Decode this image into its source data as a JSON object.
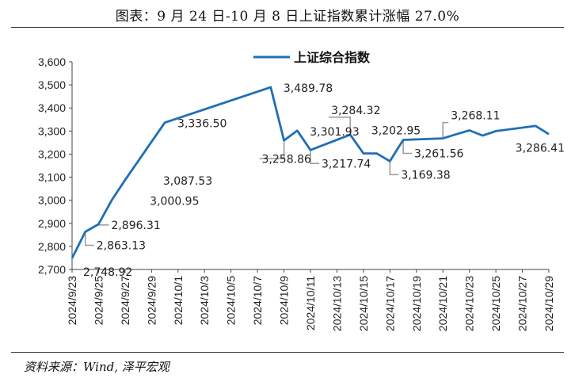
{
  "title": "图表：9 月 24 日-10 月 8 日上证指数累计涨幅 27.0%",
  "source": "资料来源：Wind, 泽平宏观",
  "colors": {
    "series": "#1f6fb5",
    "axis": "#444444",
    "leader": "#999999",
    "text": "#222222"
  },
  "chart_data": {
    "type": "line",
    "title": "图表：9 月 24 日-10 月 8 日上证指数累计涨幅 27.0%",
    "xlabel": "",
    "ylabel": "",
    "ylim": [
      2700,
      3600
    ],
    "yticks": [
      "2,700",
      "2,800",
      "2,900",
      "3,000",
      "3,100",
      "3,200",
      "3,300",
      "3,400",
      "3,500",
      "3,600"
    ],
    "xrange": [
      "2024/9/23",
      "2024/10/29"
    ],
    "xticks": [
      "2024/9/23",
      "2024/9/25",
      "2024/9/27",
      "2024/9/29",
      "2024/10/1",
      "2024/10/3",
      "2024/10/5",
      "2024/10/7",
      "2024/10/9",
      "2024/10/11",
      "2024/10/13",
      "2024/10/15",
      "2024/10/17",
      "2024/10/19",
      "2024/10/21",
      "2024/10/23",
      "2024/10/25",
      "2024/10/27",
      "2024/10/29"
    ],
    "grid": false,
    "legend": "top-center",
    "series": [
      {
        "name": "上证综合指数",
        "points": [
          {
            "x": "2024/9/23",
            "y": 2748.92
          },
          {
            "x": "2024/9/24",
            "y": 2863.13
          },
          {
            "x": "2024/9/25",
            "y": 2896.31
          },
          {
            "x": "2024/9/26",
            "y": 3000.95
          },
          {
            "x": "2024/9/27",
            "y": 3087.53
          },
          {
            "x": "2024/9/30",
            "y": 3336.5
          },
          {
            "x": "2024/10/8",
            "y": 3489.78
          },
          {
            "x": "2024/10/9",
            "y": 3258.86
          },
          {
            "x": "2024/10/10",
            "y": 3301.93
          },
          {
            "x": "2024/10/11",
            "y": 3217.74
          },
          {
            "x": "2024/10/14",
            "y": 3284.32
          },
          {
            "x": "2024/10/15",
            "y": 3202.95
          },
          {
            "x": "2024/10/16",
            "y": 3202.95
          },
          {
            "x": "2024/10/17",
            "y": 3169.38
          },
          {
            "x": "2024/10/18",
            "y": 3261.56
          },
          {
            "x": "2024/10/21",
            "y": 3268.11
          },
          {
            "x": "2024/10/22",
            "y": 3285.87
          },
          {
            "x": "2024/10/23",
            "y": 3302.8
          },
          {
            "x": "2024/10/24",
            "y": 3280.26
          },
          {
            "x": "2024/10/25",
            "y": 3299.7
          },
          {
            "x": "2024/10/28",
            "y": 3322.2
          },
          {
            "x": "2024/10/29",
            "y": 3286.41
          }
        ]
      }
    ],
    "data_labels": [
      {
        "text": "2,748.92",
        "x": "2024/9/23",
        "y": 2748.92,
        "place": "below-right",
        "leader": false
      },
      {
        "text": "2,863.13",
        "x": "2024/9/24",
        "y": 2863.13,
        "place": "below-right",
        "leader": true
      },
      {
        "text": "2,896.31",
        "x": "2024/9/25",
        "y": 2896.31,
        "place": "right",
        "leader": true
      },
      {
        "text": "3,000.95",
        "x": "2024/9/26",
        "y": 3000.95,
        "place": "right-far",
        "leader": false
      },
      {
        "text": "3,087.53",
        "x": "2024/9/27",
        "y": 3087.53,
        "place": "right-far",
        "leader": false
      },
      {
        "text": "3,336.50",
        "x": "2024/9/30",
        "y": 3336.5,
        "place": "right",
        "leader": false
      },
      {
        "text": "3,489.78",
        "x": "2024/10/8",
        "y": 3489.78,
        "place": "right",
        "leader": false
      },
      {
        "text": "3,258.86",
        "x": "2024/10/9",
        "y": 3258.86,
        "place": "below",
        "leader": true
      },
      {
        "text": "3,301.93",
        "x": "2024/10/10",
        "y": 3301.93,
        "place": "right",
        "leader": false
      },
      {
        "text": "3,217.74",
        "x": "2024/10/11",
        "y": 3217.74,
        "place": "below-right",
        "leader": true
      },
      {
        "text": "3,284.32",
        "x": "2024/10/14",
        "y": 3284.32,
        "place": "above",
        "leader": true
      },
      {
        "text": "3,202.95",
        "x": "2024/10/15",
        "y": 3202.95,
        "place": "above-right",
        "leader": false
      },
      {
        "text": "3,169.38",
        "x": "2024/10/17",
        "y": 3169.38,
        "place": "below-right",
        "leader": true
      },
      {
        "text": "3,261.56",
        "x": "2024/10/18",
        "y": 3261.56,
        "place": "below-right",
        "leader": true
      },
      {
        "text": "3,268.11",
        "x": "2024/10/21",
        "y": 3268.11,
        "place": "above-right",
        "leader": true
      },
      {
        "text": "3,286.41",
        "x": "2024/10/29",
        "y": 3286.41,
        "place": "below-left",
        "leader": false
      }
    ]
  }
}
